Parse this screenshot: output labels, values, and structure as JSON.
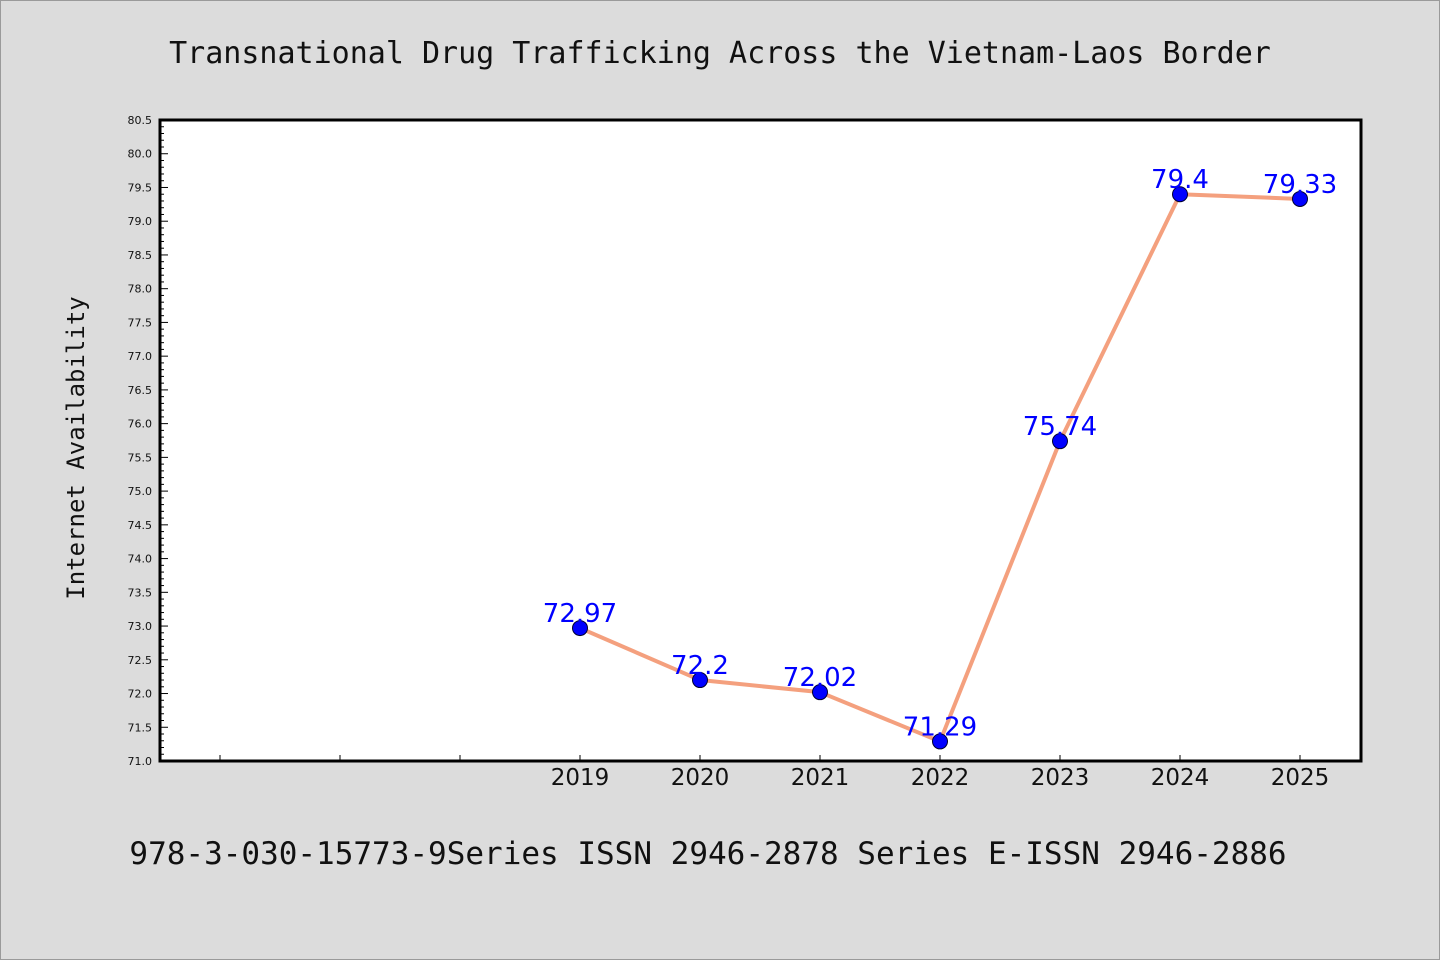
{
  "chart_data": {
    "type": "line",
    "title": "Transnational Drug Trafficking Across the Vietnam-Laos Border",
    "xlabel": "",
    "ylabel": "Internet Availability",
    "categories": [
      "",
      "",
      "",
      "2019",
      "2020",
      "2021",
      "2022",
      "2023",
      "2024",
      "2025"
    ],
    "series": [
      {
        "values": [
          null,
          null,
          null,
          72.97,
          72.2,
          72.02,
          71.29,
          75.74,
          79.4,
          79.33
        ],
        "labels": [
          "",
          "",
          "",
          "72.97",
          "72.2",
          "72.02",
          "71.29",
          "75.74",
          "79.4",
          "79.33"
        ]
      }
    ],
    "ylim": [
      71.0,
      80.5
    ],
    "yticks": [
      "71.0",
      "71.5",
      "72.0",
      "72.5",
      "73.0",
      "73.5",
      "74.0",
      "74.5",
      "75.0",
      "75.5",
      "76.0",
      "76.5",
      "77.0",
      "77.5",
      "78.0",
      "78.5",
      "79.0",
      "79.5",
      "80.0",
      "80.5"
    ],
    "grid": false,
    "legend": "none",
    "colors": {
      "line": "#f4a07e",
      "marker": "#0000ff",
      "label": "#0000ff",
      "background": "#dcdcdc",
      "plot_background": "#ffffff"
    }
  },
  "footer": "978-3-030-15773-9Series ISSN 2946-2878 Series E-ISSN 2946-2886"
}
